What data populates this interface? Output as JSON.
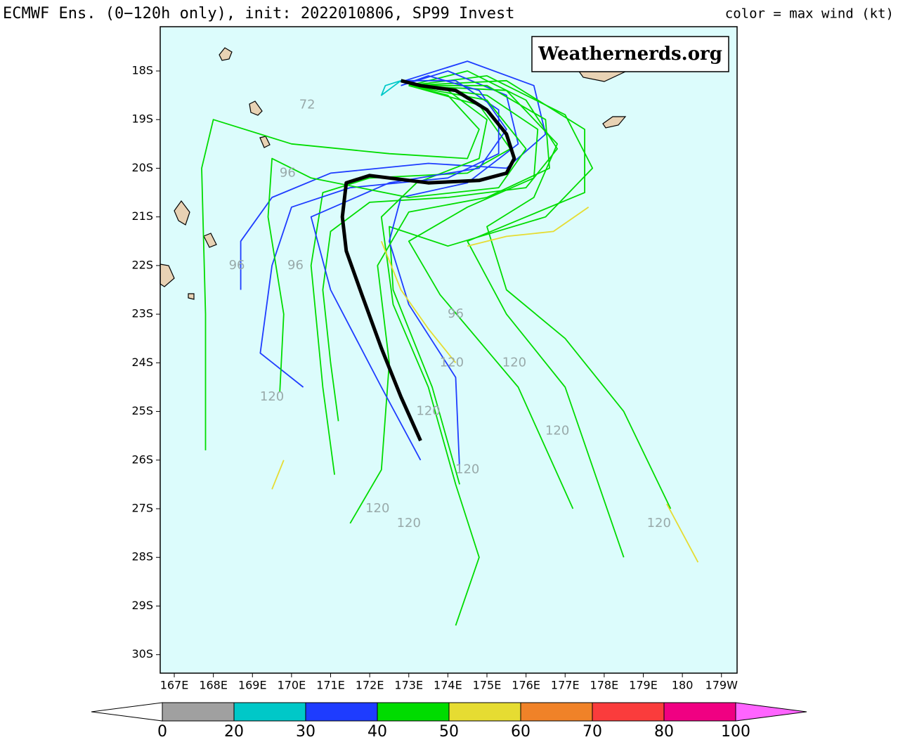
{
  "map": {
    "title": "ECMWF Ens. (0−120h only), init: 2022010806, SP99 Invest",
    "right_title": "color = max wind (kt)",
    "watermark": "Weathernerds.org",
    "xlim": [
      166.64,
      181.4
    ],
    "ylim": [
      -30.38,
      -17.09
    ],
    "xticks": [
      {
        "value": 167,
        "label": "167E"
      },
      {
        "value": 168,
        "label": "168E"
      },
      {
        "value": 169,
        "label": "169E"
      },
      {
        "value": 170,
        "label": "170E"
      },
      {
        "value": 171,
        "label": "171E"
      },
      {
        "value": 172,
        "label": "172E"
      },
      {
        "value": 173,
        "label": "173E"
      },
      {
        "value": 174,
        "label": "174E"
      },
      {
        "value": 175,
        "label": "175E"
      },
      {
        "value": 176,
        "label": "176E"
      },
      {
        "value": 177,
        "label": "177E"
      },
      {
        "value": 178,
        "label": "178E"
      },
      {
        "value": 179,
        "label": "179E"
      },
      {
        "value": 180,
        "label": "180"
      },
      {
        "value": 181,
        "label": "179W"
      }
    ],
    "yticks": [
      {
        "value": -18,
        "label": "18S"
      },
      {
        "value": -19,
        "label": "19S"
      },
      {
        "value": -20,
        "label": "20S"
      },
      {
        "value": -21,
        "label": "21S"
      },
      {
        "value": -22,
        "label": "22S"
      },
      {
        "value": -23,
        "label": "23S"
      },
      {
        "value": -24,
        "label": "24S"
      },
      {
        "value": -25,
        "label": "25S"
      },
      {
        "value": -26,
        "label": "26S"
      },
      {
        "value": -27,
        "label": "27S"
      },
      {
        "value": -28,
        "label": "28S"
      },
      {
        "value": -29,
        "label": "29S"
      },
      {
        "value": -30,
        "label": "30S"
      }
    ],
    "grid": true,
    "mean_track": {
      "color": "#000000",
      "lon": [
        172.8,
        173.3,
        174.2,
        175.0,
        175.5,
        175.7,
        175.5,
        174.8,
        173.5,
        172.0,
        171.4,
        171.3,
        171.4,
        171.8,
        172.3,
        172.8,
        173.3
      ],
      "lat": [
        -18.2,
        -18.3,
        -18.4,
        -18.8,
        -19.3,
        -19.8,
        -20.1,
        -20.25,
        -20.3,
        -20.15,
        -20.3,
        -21.0,
        -21.7,
        -22.6,
        -23.7,
        -24.7,
        -25.6
      ]
    },
    "members": [
      {
        "color": "#00dc00",
        "lon": [
          173,
          174.5,
          176,
          176.8,
          176,
          174,
          172,
          171,
          170.8,
          171,
          171.2
        ],
        "lat": [
          -18.3,
          -18.0,
          -18.6,
          -19.6,
          -20.4,
          -20.6,
          -20.7,
          -21.3,
          -22.5,
          -24,
          -25.2
        ]
      },
      {
        "color": "#1e3cff",
        "lon": [
          172.9,
          174.5,
          176.2,
          176.5,
          175.5,
          173.5,
          171,
          169.5,
          168.7,
          168.7
        ],
        "lat": [
          -18.2,
          -17.8,
          -18.3,
          -19.3,
          -20.0,
          -19.9,
          -20.1,
          -20.6,
          -21.5,
          -22.5
        ]
      },
      {
        "color": "#00dc00",
        "lon": [
          173,
          175,
          177,
          177.7,
          176.5,
          174,
          172.5,
          172.6,
          173.6,
          174.3
        ],
        "lat": [
          -18.3,
          -18.1,
          -18.9,
          -20,
          -21,
          -21.6,
          -21.2,
          -22.5,
          -24.5,
          -26.5
        ]
      },
      {
        "color": "#00dc00",
        "lon": [
          173,
          174,
          174.8,
          174.5,
          172.5,
          170,
          168,
          167.7,
          167.8,
          167.8
        ],
        "lat": [
          -18.3,
          -18.5,
          -19.2,
          -19.8,
          -19.7,
          -19.5,
          -19.0,
          -20,
          -23,
          -25.8
        ]
      },
      {
        "color": "#00dc00",
        "lon": [
          173,
          175.5,
          176.8,
          176.2,
          175,
          175.5,
          177,
          178.5,
          179.7
        ],
        "lat": [
          -18.3,
          -18.4,
          -19.5,
          -20.6,
          -21.2,
          -22.5,
          -23.5,
          -25,
          -27
        ]
      },
      {
        "color": "#1e3cff",
        "lon": [
          172.8,
          174,
          175.5,
          175.8,
          174.5,
          172.8,
          172.5,
          173,
          174.2,
          174.3
        ],
        "lat": [
          -18.3,
          -18.0,
          -18.5,
          -19.5,
          -20.3,
          -20.6,
          -21.5,
          -22.8,
          -24.3,
          -26.2
        ]
      },
      {
        "color": "#00dc00",
        "lon": [
          173,
          175,
          176.5,
          176.6,
          175,
          173,
          172.2,
          172.5,
          172.3,
          171.5
        ],
        "lat": [
          -18.3,
          -18.3,
          -19.0,
          -20,
          -20.6,
          -20.9,
          -22,
          -24,
          -26.2,
          -27.3
        ]
      },
      {
        "color": "#00dc00",
        "lon": [
          173,
          174.8,
          175.6,
          174.5,
          172,
          170.8,
          170.5,
          170.8,
          171.1
        ],
        "lat": [
          -18.3,
          -18.7,
          -19.6,
          -20.1,
          -20.2,
          -20.5,
          -22,
          -24.5,
          -26.3
        ]
      },
      {
        "color": "#00dc00",
        "lon": [
          173,
          175.5,
          177.5,
          177.5,
          176,
          174.5,
          175.5,
          177,
          178.5
        ],
        "lat": [
          -18.3,
          -18.2,
          -19.2,
          -20.5,
          -21,
          -21.5,
          -23,
          -24.5,
          -28
        ]
      },
      {
        "color": "#00dc00",
        "lon": [
          173,
          174,
          175,
          174.8,
          173.2,
          172.3,
          172.6,
          173.5,
          174.2,
          174.8,
          174.2
        ],
        "lat": [
          -18.3,
          -18.4,
          -19,
          -19.8,
          -20.3,
          -21,
          -22.8,
          -24.5,
          -26.5,
          -28,
          -29.4
        ]
      },
      {
        "color": "#1e3cff",
        "lon": [
          172.8,
          174.2,
          175.3,
          175.3,
          174,
          171.5,
          170,
          169.5,
          169.2,
          170.3
        ],
        "lat": [
          -18.2,
          -18.2,
          -18.8,
          -19.7,
          -20.2,
          -20.4,
          -20.8,
          -22,
          -23.8,
          -24.5
        ]
      },
      {
        "color": "#00dc00",
        "lon": [
          173,
          175,
          176.3,
          176.2,
          174.5,
          173,
          173.8,
          175.8,
          177.2
        ],
        "lat": [
          -18.3,
          -18.5,
          -19.2,
          -20.2,
          -20.8,
          -21.5,
          -22.6,
          -24.5,
          -27
        ]
      },
      {
        "color": "#1e3cff",
        "lon": [
          172.8,
          173.5,
          174.8,
          175.5,
          174.8,
          172.5,
          170.5,
          171,
          172.3,
          173.3
        ],
        "lat": [
          -18.3,
          -18.1,
          -18.4,
          -19.2,
          -20,
          -20.3,
          -21,
          -22.5,
          -24.5,
          -26
        ]
      },
      {
        "color": "#00dc00",
        "lon": [
          173,
          175,
          176,
          175.3,
          173,
          170.5,
          169.5,
          169.4,
          169.8,
          169.7
        ],
        "lat": [
          -18.3,
          -18.6,
          -19.6,
          -20.4,
          -20.6,
          -20.2,
          -19.8,
          -21,
          -23,
          -24.6
        ]
      },
      {
        "color": "#00c8c8",
        "lon": [
          172.8,
          172.3,
          172.4,
          172.8
        ],
        "lat": [
          -18.2,
          -18.5,
          -18.3,
          -18.2
        ]
      },
      {
        "color": "#e6dc32",
        "lon": [
          177.6,
          176.7,
          175.5,
          174.5
        ],
        "lat": [
          -20.8,
          -21.3,
          -21.4,
          -21.6
        ]
      },
      {
        "color": "#e6dc32",
        "lon": [
          179.6,
          180.4
        ],
        "lat": [
          -26.9,
          -28.1
        ]
      },
      {
        "color": "#e6dc32",
        "lon": [
          169.8,
          169.5
        ],
        "lat": [
          -26.0,
          -26.6
        ]
      },
      {
        "color": "#e6dc32",
        "lon": [
          172.3,
          172.8,
          173.5,
          174.2
        ],
        "lat": [
          -21.5,
          -22.5,
          -23.3,
          -24.0
        ]
      }
    ],
    "hour_labels": [
      {
        "text": "72",
        "lon": 170.4,
        "lat": -18.7
      },
      {
        "text": "96",
        "lon": 169.9,
        "lat": -20.1
      },
      {
        "text": "96",
        "lon": 168.6,
        "lat": -22.0
      },
      {
        "text": "96",
        "lon": 170.1,
        "lat": -22.0
      },
      {
        "text": "96",
        "lon": 174.2,
        "lat": -23.0
      },
      {
        "text": "120",
        "lon": 169.5,
        "lat": -24.7
      },
      {
        "text": "120",
        "lon": 173.5,
        "lat": -25.0
      },
      {
        "text": "120",
        "lon": 174.1,
        "lat": -24.0
      },
      {
        "text": "120",
        "lon": 175.7,
        "lat": -24.0
      },
      {
        "text": "120",
        "lon": 176.8,
        "lat": -25.4
      },
      {
        "text": "120",
        "lon": 174.5,
        "lat": -26.2
      },
      {
        "text": "120",
        "lon": 172.2,
        "lat": -27.0
      },
      {
        "text": "120",
        "lon": 173.0,
        "lat": -27.3
      },
      {
        "text": "120",
        "lon": 179.4,
        "lat": -27.3
      }
    ],
    "colorbar": {
      "ticks": [
        0,
        20,
        30,
        40,
        50,
        60,
        70,
        80,
        100
      ],
      "colors": [
        "#a0a0a0",
        "#00c8c8",
        "#1e3cff",
        "#00dc00",
        "#e6dc32",
        "#f08228",
        "#fa3c3c",
        "#f00082"
      ],
      "under_color": "#ffffff",
      "over_color": "#ff64ff"
    }
  }
}
